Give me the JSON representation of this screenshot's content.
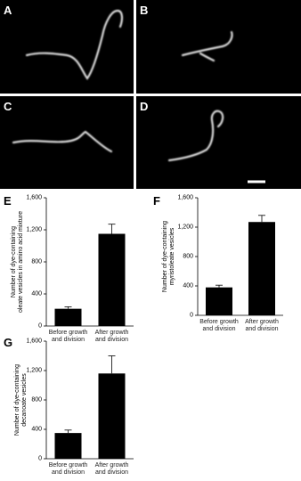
{
  "panels": [
    "A",
    "B",
    "C",
    "D"
  ],
  "chart_data": [
    {
      "type": "bar",
      "panel": "E",
      "y_label": "Number of dye-containing\noleate vesicles in amino acid mixture",
      "categories": [
        "Before growth\nand division",
        "After growth\nand division"
      ],
      "values": [
        215,
        1150
      ],
      "errors": [
        25,
        120
      ],
      "color": "#000000",
      "ylim": [
        0,
        1600
      ],
      "yticks": [
        0,
        400,
        800,
        {
          "value": 1200,
          "label": "1,200"
        },
        {
          "value": 1600,
          "label": "1,600"
        }
      ]
    },
    {
      "type": "bar",
      "panel": "F",
      "y_label": "Number of dye-containing\nmyristoleate vesicles",
      "categories": [
        "Before growth\nand division",
        "After growth\nand division"
      ],
      "values": [
        380,
        1270
      ],
      "errors": [
        30,
        90
      ],
      "color": "#000000",
      "ylim": [
        0,
        1600
      ],
      "yticks": [
        0,
        400,
        800,
        {
          "value": 1200,
          "label": "1,200"
        },
        {
          "value": 1600,
          "label": "1,600"
        }
      ]
    },
    {
      "type": "bar",
      "panel": "G",
      "y_label": "Number of dye-containing\ndecanoate vesicles",
      "categories": [
        "Before growth\nand division",
        "After growth\nand division"
      ],
      "values": [
        350,
        1160
      ],
      "errors": [
        40,
        240
      ],
      "color": "#000000",
      "ylim": [
        0,
        1600
      ],
      "yticks": [
        0,
        400,
        800,
        {
          "value": 1200,
          "label": "1,200"
        },
        {
          "value": 1600,
          "label": "1,600"
        }
      ]
    }
  ]
}
